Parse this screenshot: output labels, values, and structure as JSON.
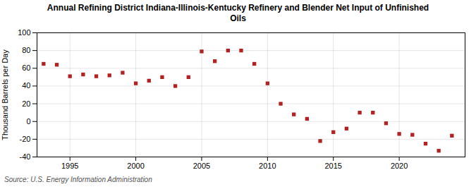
{
  "chart_data": {
    "type": "scatter",
    "title": "Annual Refining District Indiana-Illinois-Kentucky Refinery and Blender Net Input of Unfinished\nOils",
    "ylabel": "Thousand Barrels per Day",
    "annotations": [
      "Source: U.S. Energy Information Administration"
    ],
    "x": [
      1993,
      1994,
      1995,
      1996,
      1997,
      1998,
      1999,
      2000,
      2001,
      2002,
      2003,
      2004,
      2005,
      2006,
      2007,
      2008,
      2009,
      2010,
      2011,
      2012,
      2013,
      2014,
      2015,
      2016,
      2017,
      2018,
      2019,
      2020,
      2021,
      2022,
      2023,
      2024
    ],
    "values": [
      65,
      64,
      51,
      53,
      51,
      52,
      55,
      43,
      46,
      50,
      40,
      50,
      79,
      68,
      80,
      80,
      65,
      43,
      20,
      8,
      3,
      -22,
      -12,
      -8,
      10,
      10,
      -2,
      -14,
      -15,
      -25,
      -33,
      -16
    ],
    "color": "#b22222",
    "marker": "square",
    "xlim": [
      1992.5,
      2025
    ],
    "ylim": [
      -40,
      100
    ],
    "xticks": [
      1995,
      2000,
      2005,
      2010,
      2015,
      2020
    ],
    "yticks": [
      -40,
      -20,
      0,
      20,
      40,
      60,
      80,
      100
    ],
    "grid": true
  }
}
